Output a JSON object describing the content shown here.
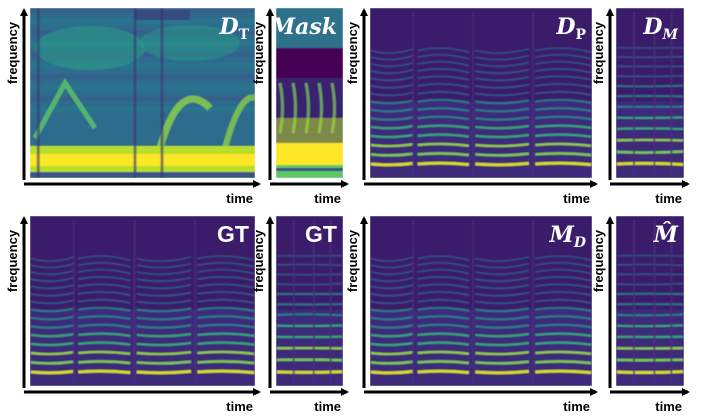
{
  "axis": {
    "y_label": "frequency",
    "x_label": "time"
  },
  "panels": [
    {
      "id": "dt",
      "title_main": "D",
      "title_sub": "T",
      "title_style": "serif",
      "kind": "dt"
    },
    {
      "id": "mask",
      "title_main": "Mask",
      "title_sub": "",
      "title_style": "serif",
      "kind": "mask"
    },
    {
      "id": "dp",
      "title_main": "D",
      "title_sub": "P",
      "title_style": "serif",
      "kind": "harm"
    },
    {
      "id": "dm",
      "title_main": "D",
      "title_sub": "M",
      "title_style": "serif",
      "kind": "harmnarrow"
    },
    {
      "id": "gt1",
      "title_main": "GT",
      "title_sub": "",
      "title_style": "sans",
      "kind": "harm"
    },
    {
      "id": "gt2",
      "title_main": "GT",
      "title_sub": "",
      "title_style": "sans",
      "kind": "harmnarrow"
    },
    {
      "id": "md",
      "title_main": "M",
      "title_sub": "D",
      "title_style": "serif",
      "kind": "harm"
    },
    {
      "id": "mhat",
      "title_main": "M̂",
      "title_sub": "",
      "title_style": "serif",
      "kind": "harmnarrow"
    }
  ],
  "colors": {
    "background": "#440154",
    "dark": "#3b1f6e",
    "mid": "#2c6d8e",
    "teal": "#21918c",
    "green": "#35b779",
    "yellow": "#d8e219",
    "bright": "#fde725"
  }
}
